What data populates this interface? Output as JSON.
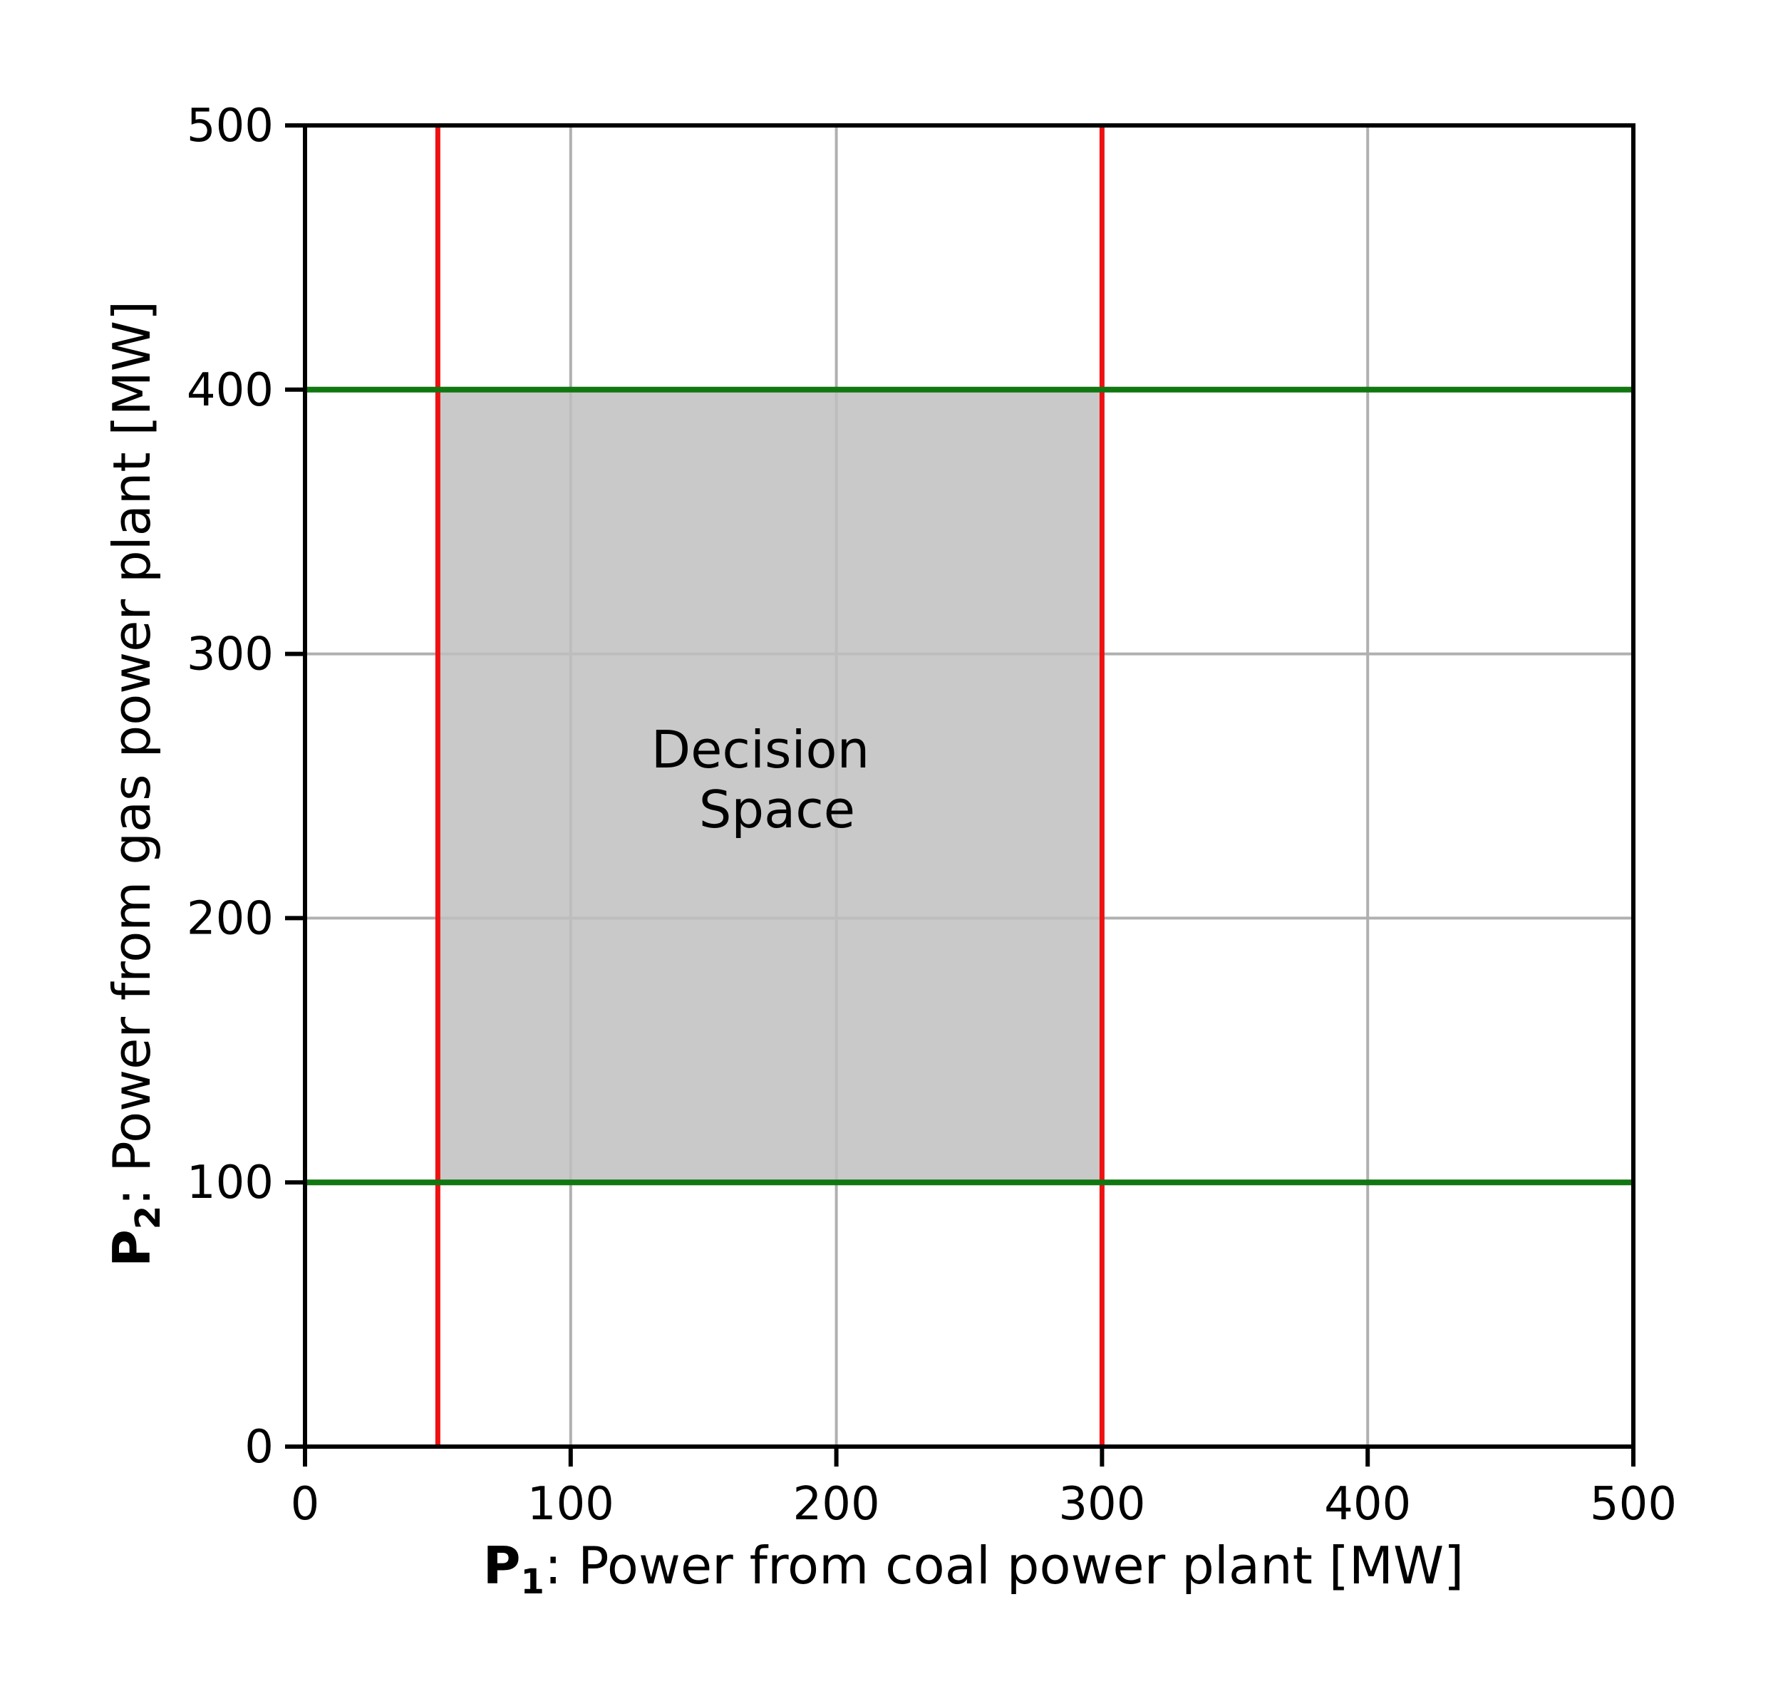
{
  "chart_data": {
    "type": "area",
    "xlabel": {
      "symbol": "P",
      "subscript": "1",
      "text": ": Power from coal power plant [MW]"
    },
    "ylabel": {
      "symbol": "P",
      "subscript": "2",
      "text": ": Power from gas power plant [MW]"
    },
    "xlim": [
      0,
      500
    ],
    "ylim": [
      0,
      500
    ],
    "xticks": [
      0,
      100,
      200,
      300,
      400,
      500
    ],
    "yticks": [
      0,
      100,
      200,
      300,
      400,
      500
    ],
    "xtick_labels": [
      "0",
      "100",
      "200",
      "300",
      "400",
      "500"
    ],
    "ytick_labels": [
      "0",
      "100",
      "200",
      "300",
      "400",
      "500"
    ],
    "grid": true,
    "vertical_lines": [
      {
        "x": 50,
        "color": "#ee1111"
      },
      {
        "x": 300,
        "color": "#ee1111"
      }
    ],
    "horizontal_lines": [
      {
        "y": 100,
        "color": "#117711"
      },
      {
        "y": 400,
        "color": "#117711"
      }
    ],
    "region": {
      "x": [
        50,
        300
      ],
      "y": [
        100,
        400
      ],
      "color": "#c0c0c0",
      "label_lines": [
        "Decision",
        "Space"
      ],
      "label_position": {
        "x": 175,
        "y": 250
      }
    }
  },
  "colors": {
    "grid": "#b0b0b0",
    "axis": "#000000"
  }
}
